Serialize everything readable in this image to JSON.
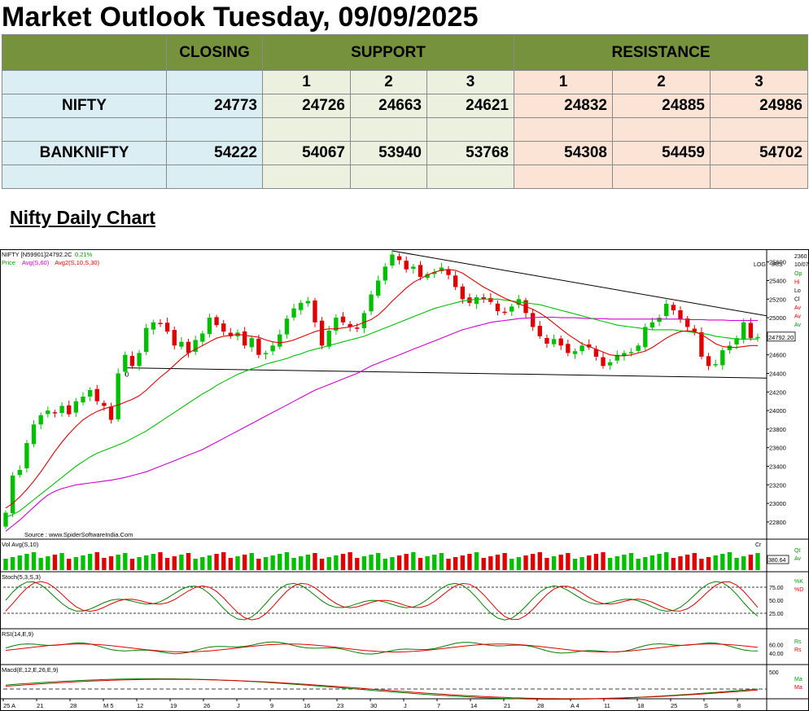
{
  "title": "Market Outlook Tuesday, 09/09/2025",
  "table": {
    "headers": {
      "closing": "CLOSING",
      "support": "SUPPORT",
      "resistance": "RESISTANCE"
    },
    "level_nums": [
      "1",
      "2",
      "3"
    ],
    "rows": [
      {
        "name": "NIFTY",
        "closing": "24773",
        "support": [
          "24726",
          "24663",
          "24621"
        ],
        "resistance": [
          "24832",
          "24885",
          "24986"
        ]
      },
      {
        "name": "BANKNIFTY",
        "closing": "54222",
        "support": [
          "54067",
          "53940",
          "53768"
        ],
        "resistance": [
          "54308",
          "54459",
          "54702"
        ]
      }
    ]
  },
  "subtitle": "Nifty Daily Chart",
  "chart_data": {
    "type": "candlestick",
    "header_line1": "NIFTY [N59901]24792.2C",
    "header_change": "0.21%",
    "header_line2": [
      "Price",
      "Avg(S,60)",
      "Avg2(S,10,S,30)"
    ],
    "source": "Source : www.SpiderSoftwareIndia.Com",
    "log_label": "LOG",
    "iris_label": "IRIS",
    "corner_top": "2360",
    "corner_date": "10/07",
    "legend_right": [
      "Op",
      "Hi",
      "Lo",
      "Cl",
      "Av",
      "Av",
      "Av"
    ],
    "zero_marker": "0",
    "last_price_label": "24792.20",
    "price_axis": [
      25600,
      25400,
      25200,
      25000,
      24800,
      24600,
      24400,
      24200,
      24000,
      23800,
      23600,
      23400,
      23200,
      23000,
      22800
    ],
    "ylim": [
      22650,
      25720
    ],
    "close_series": [
      22900,
      23300,
      23360,
      23650,
      23850,
      23950,
      24000,
      23980,
      24050,
      23960,
      24100,
      24150,
      24220,
      24100,
      24050,
      23900,
      24400,
      24600,
      24480,
      24620,
      24890,
      24950,
      24940,
      24850,
      24700,
      24740,
      24620,
      24760,
      24830,
      25000,
      24920,
      24850,
      24800,
      24840,
      24700,
      24780,
      24600,
      24620,
      24700,
      24820,
      24990,
      25100,
      25160,
      25180,
      24950,
      24700,
      24860,
      25000,
      24950,
      24900,
      24880,
      25050,
      25250,
      25400,
      25550,
      25680,
      25620,
      25520,
      25550,
      25440,
      25470,
      25490,
      25540,
      25460,
      25330,
      25200,
      25160,
      25220,
      25200,
      25170,
      25070,
      25060,
      25120,
      25200,
      25050,
      24900,
      24800,
      24720,
      24770,
      24700,
      24620,
      24640,
      24700,
      24680,
      24580,
      24480,
      24520,
      24600,
      24620,
      24630,
      24700,
      24900,
      24950,
      25000,
      25150,
      25080,
      24980,
      24900,
      24850,
      24580,
      24480,
      24500,
      24650,
      24700,
      24780,
      24950,
      24780,
      24792
    ],
    "sma60": [
      22700,
      22760,
      22820,
      22890,
      22960,
      23030,
      23090,
      23130,
      23160,
      23180,
      23200,
      23210,
      23220,
      23230,
      23240,
      23250,
      23265,
      23280,
      23300,
      23320,
      23340,
      23370,
      23400,
      23430,
      23460,
      23490,
      23520,
      23550,
      23580,
      23620,
      23660,
      23700,
      23740,
      23780,
      23820,
      23860,
      23900,
      23940,
      23980,
      24020,
      24060,
      24100,
      24140,
      24180,
      24220,
      24250,
      24280,
      24310,
      24340,
      24370,
      24400,
      24440,
      24480,
      24510,
      24540,
      24570,
      24600,
      24630,
      24660,
      24690,
      24720,
      24750,
      24780,
      24810,
      24840,
      24870,
      24890,
      24910,
      24930,
      24950,
      24960,
      24970,
      24980,
      24990,
      24995,
      25000,
      25005,
      25005,
      25005,
      25000,
      25000,
      25000,
      24995,
      24990,
      24990,
      24990,
      24985,
      24985,
      24985,
      24985,
      24985,
      24985,
      24985,
      24985,
      24985,
      24985,
      24985,
      24980,
      24980,
      24980,
      24975,
      24975,
      24975,
      24970,
      24970,
      24970,
      24970,
      24970
    ],
    "sma10": [
      22950,
      23000,
      23070,
      23150,
      23240,
      23340,
      23450,
      23560,
      23660,
      23750,
      23830,
      23900,
      23950,
      23990,
      24020,
      24040,
      24060,
      24090,
      24120,
      24160,
      24220,
      24290,
      24360,
      24420,
      24490,
      24560,
      24620,
      24660,
      24700,
      24740,
      24780,
      24800,
      24810,
      24820,
      24810,
      24800,
      24790,
      24760,
      24740,
      24730,
      24740,
      24760,
      24790,
      24820,
      24850,
      24870,
      24880,
      24880,
      24890,
      24900,
      24920,
      24950,
      24980,
      25030,
      25100,
      25180,
      25250,
      25320,
      25380,
      25420,
      25460,
      25490,
      25510,
      25520,
      25510,
      25480,
      25430,
      25380,
      25330,
      25290,
      25250,
      25210,
      25180,
      25150,
      25120,
      25090,
      25050,
      25000,
      24940,
      24880,
      24820,
      24770,
      24720,
      24690,
      24660,
      24630,
      24600,
      24590,
      24590,
      24600,
      24620,
      24640,
      24680,
      24730,
      24780,
      24820,
      24850,
      24860,
      24850,
      24820,
      24770,
      24720,
      24690,
      24680,
      24680,
      24690,
      24700,
      24700
    ],
    "sma30": [
      22850,
      22880,
      22920,
      22980,
      23040,
      23100,
      23160,
      23220,
      23280,
      23340,
      23400,
      23450,
      23500,
      23540,
      23570,
      23600,
      23630,
      23660,
      23700,
      23740,
      23780,
      23830,
      23880,
      23930,
      23980,
      24030,
      24080,
      24130,
      24180,
      24220,
      24270,
      24310,
      24350,
      24390,
      24420,
      24450,
      24470,
      24500,
      24520,
      24540,
      24560,
      24590,
      24610,
      24640,
      24660,
      24680,
      24700,
      24720,
      24740,
      24760,
      24780,
      24800,
      24830,
      24860,
      24890,
      24920,
      24950,
      24980,
      25010,
      25040,
      25070,
      25100,
      25120,
      25140,
      25160,
      25180,
      25190,
      25200,
      25200,
      25200,
      25200,
      25190,
      25180,
      25170,
      25160,
      25150,
      25140,
      25120,
      25100,
      25080,
      25060,
      25040,
      25020,
      25000,
      24980,
      24960,
      24940,
      24920,
      24910,
      24900,
      24890,
      24880,
      24870,
      24870,
      24870,
      24870,
      24860,
      24850,
      24840,
      24830,
      24820,
      24800,
      24790,
      24780,
      24770,
      24770,
      24770,
      24770
    ],
    "volume_label": "Vol Avg(S,10)",
    "volume_corner": "Cr",
    "volume_last": "380.64",
    "volume_legend": [
      "Qt",
      "Av"
    ],
    "stoch_label": "Stoch(5,3,S,3)",
    "stoch_axis": [
      "75.00",
      "50.00",
      "25.00"
    ],
    "stoch_legend": [
      "%K",
      "%D"
    ],
    "rsi_label": "RSI(14,E,9)",
    "rsi_axis": [
      "60.00",
      "40.00"
    ],
    "rsi_legend": [
      "Rs",
      "Rs"
    ],
    "macd_label": "Macd(E,12,E,26,E,9)",
    "macd_axis": [
      "500"
    ],
    "macd_legend": [
      "Ma",
      "Ma"
    ],
    "x_ticks": [
      "25 A",
      "21",
      "28",
      "M 5",
      "12",
      "19",
      "26",
      "J",
      "9",
      "16",
      "23",
      "30",
      "J",
      "7",
      "14",
      "21",
      "28",
      "A 4",
      "11",
      "18",
      "25",
      "S",
      "8"
    ],
    "colors": {
      "up": "#00c000",
      "down": "#e00000",
      "sma10": "#e00000",
      "sma30": "#00c000",
      "sma60": "#d000d0",
      "header": "#76923c"
    }
  }
}
